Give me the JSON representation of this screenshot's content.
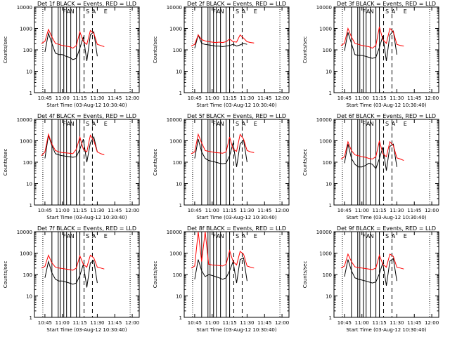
{
  "colors": {
    "events": "#000000",
    "lld": "#ff0000",
    "axis": "#000000",
    "background": "#ffffff"
  },
  "common": {
    "ylabel": "Counts/sec",
    "xlabel": "Start Time (03-Aug-12 10:30:40)",
    "xticks": [
      "10:45",
      "11:00",
      "11:15",
      "11:30",
      "11:45",
      "12:00"
    ],
    "yticks_linear_labels": [
      "1",
      "10",
      "100",
      "1000",
      "10000"
    ],
    "marker_letters": [
      "F",
      "A",
      "N",
      "S",
      "A",
      "E"
    ]
  },
  "chart_data": [
    {
      "type": "line",
      "title": "Det 1f BLACK = Events, RED = LLD",
      "ylim": [
        1,
        10000
      ],
      "yscale": "log",
      "series": [
        {
          "name": "Events",
          "color": "black",
          "x": [
            10.75,
            10.8,
            10.85,
            10.9,
            10.95,
            11.0,
            11.05,
            11.1,
            11.15,
            11.2,
            11.25,
            11.3,
            11.35,
            11.4,
            11.45,
            11.5
          ],
          "y": [
            80,
            600,
            200,
            70,
            60,
            60,
            50,
            45,
            35,
            40,
            120,
            400,
            30,
            500,
            700,
            50
          ]
        },
        {
          "name": "LLD",
          "color": "red",
          "x": [
            10.7,
            10.75,
            10.8,
            10.85,
            10.9,
            10.95,
            11.0,
            11.05,
            11.1,
            11.15,
            11.2,
            11.25,
            11.3,
            11.35,
            11.4,
            11.45,
            11.5,
            11.55,
            11.6
          ],
          "y": [
            200,
            250,
            900,
            400,
            200,
            180,
            160,
            150,
            140,
            120,
            160,
            700,
            250,
            180,
            800,
            600,
            180,
            160,
            140
          ]
        }
      ]
    },
    {
      "type": "line",
      "title": "Det 2f BLACK = Events, RED = LLD",
      "ylim": [
        1,
        10000
      ],
      "yscale": "log",
      "series": [
        {
          "name": "Events",
          "color": "black",
          "x": [
            10.75,
            10.8,
            10.85,
            10.9,
            10.95,
            11.0,
            11.05,
            11.1,
            11.15,
            11.2,
            11.25,
            11.3,
            11.35,
            11.4,
            11.45,
            11.5
          ],
          "y": [
            120,
            500,
            200,
            180,
            170,
            160,
            150,
            150,
            140,
            150,
            160,
            180,
            150,
            170,
            200,
            180
          ]
        },
        {
          "name": "LLD",
          "color": "red",
          "x": [
            10.7,
            10.75,
            10.8,
            10.85,
            10.9,
            10.95,
            11.0,
            11.05,
            11.1,
            11.15,
            11.2,
            11.25,
            11.3,
            11.35,
            11.4,
            11.45,
            11.5,
            11.55,
            11.6
          ],
          "y": [
            150,
            180,
            500,
            300,
            260,
            240,
            230,
            220,
            230,
            220,
            240,
            320,
            240,
            230,
            500,
            350,
            240,
            220,
            210
          ]
        }
      ]
    },
    {
      "type": "line",
      "title": "Det 3f BLACK = Events, RED = LLD",
      "ylim": [
        1,
        10000
      ],
      "yscale": "log",
      "series": [
        {
          "name": "Events",
          "color": "black",
          "x": [
            10.75,
            10.8,
            10.85,
            10.9,
            10.95,
            11.0,
            11.05,
            11.1,
            11.15,
            11.2,
            11.25,
            11.3,
            11.35,
            11.4,
            11.45,
            11.5
          ],
          "y": [
            90,
            650,
            200,
            60,
            55,
            55,
            50,
            45,
            40,
            45,
            130,
            450,
            30,
            500,
            750,
            60
          ]
        },
        {
          "name": "LLD",
          "color": "red",
          "x": [
            10.7,
            10.75,
            10.8,
            10.85,
            10.9,
            10.95,
            11.0,
            11.05,
            11.1,
            11.15,
            11.2,
            11.25,
            11.3,
            11.35,
            11.4,
            11.45,
            11.5,
            11.55,
            11.6
          ],
          "y": [
            160,
            200,
            1000,
            400,
            200,
            180,
            160,
            150,
            140,
            120,
            160,
            1200,
            300,
            200,
            1000,
            700,
            180,
            160,
            150
          ]
        }
      ]
    },
    {
      "type": "line",
      "title": "Det 4f BLACK = Events, RED = LLD",
      "ylim": [
        1,
        10000
      ],
      "yscale": "log",
      "series": [
        {
          "name": "Events",
          "color": "black",
          "x": [
            10.75,
            10.8,
            10.85,
            10.9,
            10.95,
            11.0,
            11.05,
            11.1,
            11.15,
            11.2,
            11.25,
            11.3,
            11.35,
            11.4,
            11.45,
            11.5
          ],
          "y": [
            150,
            1800,
            600,
            250,
            220,
            200,
            190,
            180,
            170,
            180,
            400,
            1200,
            100,
            800,
            1500,
            300
          ]
        },
        {
          "name": "LLD",
          "color": "red",
          "x": [
            10.7,
            10.75,
            10.8,
            10.85,
            10.9,
            10.95,
            11.0,
            11.05,
            11.1,
            11.15,
            11.2,
            11.25,
            11.3,
            11.35,
            11.4,
            11.45,
            11.5,
            11.55,
            11.6
          ],
          "y": [
            200,
            300,
            2000,
            700,
            350,
            300,
            280,
            270,
            260,
            250,
            400,
            1500,
            400,
            300,
            1800,
            1000,
            300,
            250,
            220
          ]
        }
      ]
    },
    {
      "type": "line",
      "title": "Det 5f BLACK = Events, RED = LLD",
      "ylim": [
        1,
        10000
      ],
      "yscale": "log",
      "series": [
        {
          "name": "Events",
          "color": "black",
          "x": [
            10.75,
            10.8,
            10.85,
            10.9,
            10.95,
            11.0,
            11.05,
            11.1,
            11.15,
            11.2,
            11.25,
            11.3,
            11.35,
            11.4,
            11.45,
            11.5
          ],
          "y": [
            150,
            1200,
            300,
            150,
            120,
            110,
            100,
            90,
            85,
            90,
            200,
            800,
            60,
            700,
            1100,
            100
          ]
        },
        {
          "name": "LLD",
          "color": "red",
          "x": [
            10.7,
            10.75,
            10.8,
            10.85,
            10.9,
            10.95,
            11.0,
            11.05,
            11.1,
            11.15,
            11.2,
            11.25,
            11.3,
            11.35,
            11.4,
            11.45,
            11.5,
            11.55,
            11.6
          ],
          "y": [
            250,
            300,
            2000,
            800,
            350,
            320,
            300,
            280,
            270,
            260,
            300,
            1500,
            400,
            320,
            2000,
            1200,
            350,
            300,
            280
          ]
        }
      ]
    },
    {
      "type": "line",
      "title": "Det 6f BLACK = Events, RED = LLD",
      "ylim": [
        1,
        10000
      ],
      "yscale": "log",
      "series": [
        {
          "name": "Events",
          "color": "black",
          "x": [
            10.75,
            10.8,
            10.85,
            10.9,
            10.95,
            11.0,
            11.05,
            11.1,
            11.15,
            11.2,
            11.25,
            11.3,
            11.35,
            11.4,
            11.45,
            11.5
          ],
          "y": [
            90,
            700,
            150,
            80,
            60,
            60,
            70,
            90,
            80,
            50,
            150,
            500,
            40,
            550,
            700,
            60
          ]
        },
        {
          "name": "LLD",
          "color": "red",
          "x": [
            10.7,
            10.75,
            10.8,
            10.85,
            10.9,
            10.95,
            11.0,
            11.05,
            11.1,
            11.15,
            11.2,
            11.25,
            11.3,
            11.35,
            11.4,
            11.45,
            11.5,
            11.55,
            11.6
          ],
          "y": [
            140,
            180,
            900,
            350,
            220,
            200,
            180,
            170,
            150,
            140,
            180,
            1000,
            250,
            180,
            900,
            600,
            160,
            140,
            120
          ]
        }
      ]
    },
    {
      "type": "line",
      "title": "Det 7f BLACK = Events, RED = LLD",
      "ylim": [
        1,
        10000
      ],
      "yscale": "log",
      "series": [
        {
          "name": "Events",
          "color": "black",
          "x": [
            10.75,
            10.8,
            10.85,
            10.9,
            10.95,
            11.0,
            11.05,
            11.1,
            11.15,
            11.2,
            11.25,
            11.3,
            11.35,
            11.4,
            11.45,
            11.5
          ],
          "y": [
            70,
            400,
            120,
            60,
            50,
            50,
            45,
            40,
            35,
            40,
            90,
            300,
            25,
            350,
            450,
            40
          ]
        },
        {
          "name": "LLD",
          "color": "red",
          "x": [
            10.7,
            10.75,
            10.8,
            10.85,
            10.9,
            10.95,
            11.0,
            11.05,
            11.1,
            11.15,
            11.2,
            11.25,
            11.3,
            11.35,
            11.4,
            11.45,
            11.5,
            11.55,
            11.6
          ],
          "y": [
            200,
            240,
            800,
            350,
            220,
            200,
            190,
            180,
            170,
            160,
            200,
            750,
            300,
            220,
            800,
            600,
            220,
            200,
            180
          ]
        }
      ]
    },
    {
      "type": "line",
      "title": "Det 8f BLACK = Events, RED = LLD",
      "ylim": [
        1,
        10000
      ],
      "yscale": "log",
      "series": [
        {
          "name": "Events",
          "color": "black",
          "x": [
            10.75,
            10.8,
            10.85,
            10.9,
            10.95,
            11.0,
            11.05,
            11.1,
            11.15,
            11.2,
            11.25,
            11.3,
            11.35,
            11.4,
            11.45,
            11.5
          ],
          "y": [
            60,
            500,
            150,
            80,
            100,
            90,
            80,
            70,
            60,
            70,
            150,
            400,
            40,
            500,
            600,
            50
          ]
        },
        {
          "name": "LLD",
          "color": "red",
          "x": [
            10.7,
            10.75,
            10.8,
            10.85,
            10.9,
            10.95,
            11.0,
            11.05,
            11.1,
            11.15,
            11.2,
            11.25,
            11.3,
            11.35,
            11.4,
            11.45,
            11.5,
            11.55,
            11.6
          ],
          "y": [
            200,
            250,
            10000,
            400,
            10000,
            300,
            280,
            270,
            260,
            250,
            300,
            1300,
            400,
            280,
            1200,
            900,
            250,
            220,
            200
          ]
        }
      ]
    },
    {
      "type": "line",
      "title": "Det 9f BLACK = Events, RED = LLD",
      "ylim": [
        1,
        10000
      ],
      "yscale": "log",
      "series": [
        {
          "name": "Events",
          "color": "black",
          "x": [
            10.75,
            10.8,
            10.85,
            10.9,
            10.95,
            11.0,
            11.05,
            11.1,
            11.15,
            11.2,
            11.25,
            11.3,
            11.35,
            11.4,
            11.45,
            11.5
          ],
          "y": [
            80,
            500,
            150,
            70,
            60,
            55,
            50,
            45,
            40,
            45,
            110,
            350,
            30,
            420,
            560,
            50
          ]
        },
        {
          "name": "LLD",
          "color": "red",
          "x": [
            10.7,
            10.75,
            10.8,
            10.85,
            10.9,
            10.95,
            11.0,
            11.05,
            11.1,
            11.15,
            11.2,
            11.25,
            11.3,
            11.35,
            11.4,
            11.45,
            11.5,
            11.55,
            11.6
          ],
          "y": [
            200,
            250,
            900,
            400,
            230,
            210,
            200,
            190,
            180,
            170,
            200,
            800,
            300,
            220,
            900,
            700,
            220,
            200,
            180
          ]
        }
      ]
    }
  ]
}
